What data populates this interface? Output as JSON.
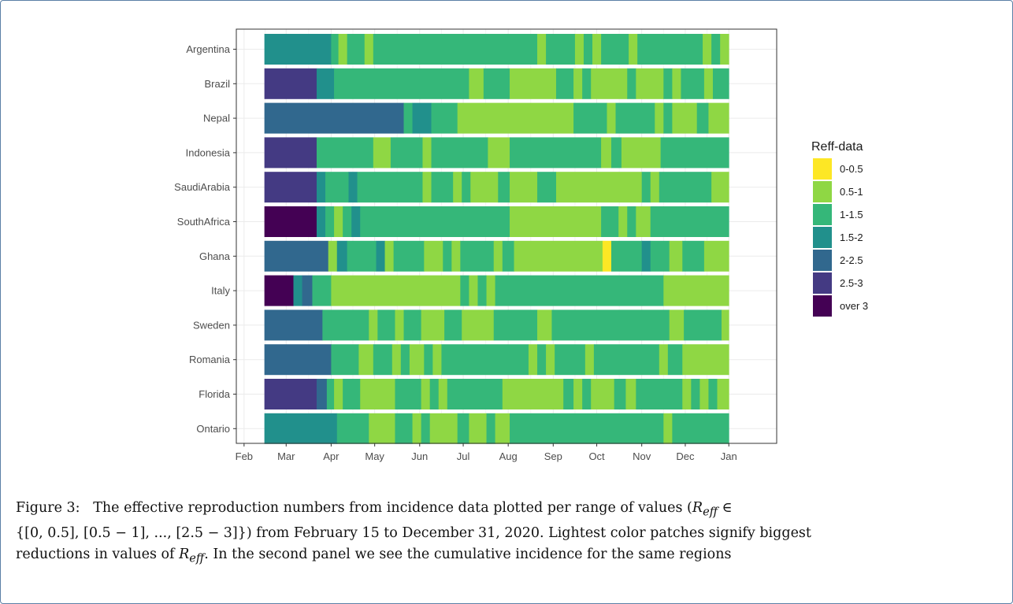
{
  "chart_data": {
    "type": "heatmap",
    "xlabel": "",
    "ylabel": "",
    "x_tick_labels": [
      "Feb",
      "Mar",
      "Apr",
      "May",
      "Jun",
      "Jul",
      "Aug",
      "Sep",
      "Oct",
      "Nov",
      "Dec",
      "Jan"
    ],
    "rows": [
      "Argentina",
      "Brazil",
      "Nepal",
      "Indonesia",
      "SaudiArabia",
      "SouthAfrica",
      "Ghana",
      "Italy",
      "Sweden",
      "Romania",
      "Florida",
      "Ontario"
    ],
    "legend": {
      "title": "Reff-data",
      "placement": "right",
      "categories": [
        {
          "label": "0-0.5",
          "color": "#FDE725"
        },
        {
          "label": "0.5-1",
          "color": "#8FD744"
        },
        {
          "label": "1-1.5",
          "color": "#35B779"
        },
        {
          "label": "1.5-2",
          "color": "#21908C"
        },
        {
          "label": "2-2.5",
          "color": "#31688E"
        },
        {
          "label": "2.5-3",
          "color": "#443A83"
        },
        {
          "label": "over 3",
          "color": "#440154"
        }
      ]
    },
    "date_range": [
      "2020-02-15",
      "2020-12-31"
    ],
    "cells": {
      "Argentina": [
        [
          "02-15",
          "04-01",
          "1.5-2"
        ],
        [
          "04-01",
          "04-06",
          "1-1.5"
        ],
        [
          "04-06",
          "04-12",
          "0.5-1"
        ],
        [
          "04-12",
          "04-24",
          "1-1.5"
        ],
        [
          "04-24",
          "04-30",
          "0.5-1"
        ],
        [
          "04-30",
          "08-21",
          "1-1.5"
        ],
        [
          "08-21",
          "08-27",
          "0.5-1"
        ],
        [
          "08-27",
          "09-16",
          "1-1.5"
        ],
        [
          "09-16",
          "09-22",
          "0.5-1"
        ],
        [
          "09-22",
          "09-28",
          "1-1.5"
        ],
        [
          "09-28",
          "10-04",
          "0.5-1"
        ],
        [
          "10-04",
          "10-23",
          "1-1.5"
        ],
        [
          "10-23",
          "10-29",
          "0.5-1"
        ],
        [
          "10-29",
          "12-13",
          "1-1.5"
        ],
        [
          "12-13",
          "12-19",
          "0.5-1"
        ],
        [
          "12-19",
          "12-25",
          "1-1.5"
        ],
        [
          "12-25",
          "12-31",
          "0.5-1"
        ]
      ],
      "Brazil": [
        [
          "02-15",
          "03-22",
          "2.5-3"
        ],
        [
          "03-22",
          "04-03",
          "1.5-2"
        ],
        [
          "04-03",
          "07-05",
          "1-1.5"
        ],
        [
          "07-05",
          "07-15",
          "0.5-1"
        ],
        [
          "07-15",
          "08-02",
          "1-1.5"
        ],
        [
          "08-02",
          "09-03",
          "0.5-1"
        ],
        [
          "09-03",
          "09-15",
          "1-1.5"
        ],
        [
          "09-15",
          "09-21",
          "0.5-1"
        ],
        [
          "09-21",
          "09-27",
          "1-1.5"
        ],
        [
          "09-27",
          "10-22",
          "0.5-1"
        ],
        [
          "10-22",
          "10-28",
          "1-1.5"
        ],
        [
          "10-28",
          "11-16",
          "0.5-1"
        ],
        [
          "11-16",
          "11-22",
          "1-1.5"
        ],
        [
          "11-22",
          "11-28",
          "0.5-1"
        ],
        [
          "11-28",
          "12-14",
          "1-1.5"
        ],
        [
          "12-14",
          "12-20",
          "0.5-1"
        ],
        [
          "12-20",
          "12-31",
          "1-1.5"
        ]
      ],
      "Nepal": [
        [
          "02-15",
          "05-21",
          "2-2.5"
        ],
        [
          "05-21",
          "05-27",
          "1-1.5"
        ],
        [
          "05-27",
          "06-09",
          "1.5-2"
        ],
        [
          "06-09",
          "06-27",
          "1-1.5"
        ],
        [
          "06-27",
          "09-15",
          "0.5-1"
        ],
        [
          "09-15",
          "10-08",
          "1-1.5"
        ],
        [
          "10-08",
          "10-14",
          "0.5-1"
        ],
        [
          "10-14",
          "11-10",
          "1-1.5"
        ],
        [
          "11-10",
          "11-16",
          "0.5-1"
        ],
        [
          "11-16",
          "11-22",
          "1-1.5"
        ],
        [
          "11-22",
          "12-09",
          "0.5-1"
        ],
        [
          "12-09",
          "12-17",
          "1-1.5"
        ],
        [
          "12-17",
          "12-31",
          "0.5-1"
        ]
      ],
      "Indonesia": [
        [
          "02-15",
          "03-22",
          "2.5-3"
        ],
        [
          "03-22",
          "04-30",
          "1-1.5"
        ],
        [
          "04-30",
          "05-12",
          "0.5-1"
        ],
        [
          "05-12",
          "06-03",
          "1-1.5"
        ],
        [
          "06-03",
          "06-09",
          "0.5-1"
        ],
        [
          "06-09",
          "07-18",
          "1-1.5"
        ],
        [
          "07-18",
          "08-02",
          "0.5-1"
        ],
        [
          "08-02",
          "10-04",
          "1-1.5"
        ],
        [
          "10-04",
          "10-11",
          "0.5-1"
        ],
        [
          "10-11",
          "10-18",
          "1-1.5"
        ],
        [
          "10-18",
          "11-14",
          "0.5-1"
        ],
        [
          "11-14",
          "12-31",
          "1-1.5"
        ]
      ],
      "SaudiArabia": [
        [
          "02-15",
          "03-22",
          "2.5-3"
        ],
        [
          "03-22",
          "03-28",
          "1.5-2"
        ],
        [
          "03-28",
          "04-13",
          "1-1.5"
        ],
        [
          "04-13",
          "04-19",
          "1.5-2"
        ],
        [
          "04-19",
          "06-03",
          "1-1.5"
        ],
        [
          "06-03",
          "06-09",
          "0.5-1"
        ],
        [
          "06-09",
          "06-24",
          "1-1.5"
        ],
        [
          "06-24",
          "06-30",
          "0.5-1"
        ],
        [
          "06-30",
          "07-06",
          "1-1.5"
        ],
        [
          "07-06",
          "07-25",
          "0.5-1"
        ],
        [
          "07-25",
          "08-02",
          "1-1.5"
        ],
        [
          "08-02",
          "08-21",
          "0.5-1"
        ],
        [
          "08-21",
          "09-03",
          "1-1.5"
        ],
        [
          "09-03",
          "11-01",
          "0.5-1"
        ],
        [
          "11-01",
          "11-07",
          "1-1.5"
        ],
        [
          "11-07",
          "11-13",
          "0.5-1"
        ],
        [
          "11-13",
          "12-19",
          "1-1.5"
        ],
        [
          "12-19",
          "12-31",
          "0.5-1"
        ]
      ],
      "SouthAfrica": [
        [
          "02-15",
          "03-22",
          "over 3"
        ],
        [
          "03-22",
          "03-28",
          "1.5-2"
        ],
        [
          "03-28",
          "04-03",
          "1-1.5"
        ],
        [
          "04-03",
          "04-09",
          "0.5-1"
        ],
        [
          "04-09",
          "04-15",
          "1-1.5"
        ],
        [
          "04-15",
          "04-21",
          "1.5-2"
        ],
        [
          "04-21",
          "08-02",
          "1-1.5"
        ],
        [
          "08-02",
          "10-04",
          "0.5-1"
        ],
        [
          "10-04",
          "10-16",
          "1-1.5"
        ],
        [
          "10-16",
          "10-22",
          "0.5-1"
        ],
        [
          "10-22",
          "10-28",
          "1-1.5"
        ],
        [
          "10-28",
          "11-07",
          "0.5-1"
        ],
        [
          "11-07",
          "12-31",
          "1-1.5"
        ]
      ],
      "Ghana": [
        [
          "02-15",
          "03-30",
          "2-2.5"
        ],
        [
          "03-30",
          "04-05",
          "0.5-1"
        ],
        [
          "04-05",
          "04-12",
          "1.5-2"
        ],
        [
          "04-12",
          "05-02",
          "1-1.5"
        ],
        [
          "05-02",
          "05-08",
          "1.5-2"
        ],
        [
          "05-08",
          "05-14",
          "0.5-1"
        ],
        [
          "05-14",
          "06-04",
          "1-1.5"
        ],
        [
          "06-04",
          "06-17",
          "0.5-1"
        ],
        [
          "06-17",
          "06-23",
          "1-1.5"
        ],
        [
          "06-23",
          "06-29",
          "0.5-1"
        ],
        [
          "06-29",
          "07-22",
          "1-1.5"
        ],
        [
          "07-22",
          "07-28",
          "0.5-1"
        ],
        [
          "07-28",
          "08-05",
          "1-1.5"
        ],
        [
          "08-05",
          "10-05",
          "0.5-1"
        ],
        [
          "10-05",
          "10-11",
          "0-0.5"
        ],
        [
          "10-11",
          "11-01",
          "1-1.5"
        ],
        [
          "11-01",
          "11-07",
          "1.5-2"
        ],
        [
          "11-07",
          "11-20",
          "1-1.5"
        ],
        [
          "11-20",
          "11-29",
          "0.5-1"
        ],
        [
          "11-29",
          "12-14",
          "1-1.5"
        ],
        [
          "12-14",
          "12-31",
          "0.5-1"
        ]
      ],
      "Italy": [
        [
          "02-15",
          "03-06",
          "over 3"
        ],
        [
          "03-06",
          "03-12",
          "1.5-2"
        ],
        [
          "03-12",
          "03-19",
          "2-2.5"
        ],
        [
          "03-19",
          "04-01",
          "1-1.5"
        ],
        [
          "04-01",
          "06-29",
          "0.5-1"
        ],
        [
          "06-29",
          "07-05",
          "1-1.5"
        ],
        [
          "07-05",
          "07-11",
          "0.5-1"
        ],
        [
          "07-11",
          "07-17",
          "1-1.5"
        ],
        [
          "07-17",
          "07-23",
          "0.5-1"
        ],
        [
          "07-23",
          "11-16",
          "1-1.5"
        ],
        [
          "11-16",
          "12-31",
          "0.5-1"
        ]
      ],
      "Sweden": [
        [
          "02-15",
          "03-26",
          "2-2.5"
        ],
        [
          "03-26",
          "04-27",
          "1-1.5"
        ],
        [
          "04-27",
          "05-03",
          "0.5-1"
        ],
        [
          "05-03",
          "05-15",
          "1-1.5"
        ],
        [
          "05-15",
          "05-21",
          "0.5-1"
        ],
        [
          "05-21",
          "06-02",
          "1-1.5"
        ],
        [
          "06-02",
          "06-18",
          "0.5-1"
        ],
        [
          "06-18",
          "06-30",
          "1-1.5"
        ],
        [
          "06-30",
          "07-22",
          "0.5-1"
        ],
        [
          "07-22",
          "08-21",
          "1-1.5"
        ],
        [
          "08-21",
          "08-31",
          "0.5-1"
        ],
        [
          "08-31",
          "11-20",
          "1-1.5"
        ],
        [
          "11-20",
          "11-30",
          "0.5-1"
        ],
        [
          "11-30",
          "12-26",
          "1-1.5"
        ],
        [
          "12-26",
          "12-31",
          "0.5-1"
        ]
      ],
      "Romania": [
        [
          "02-15",
          "04-01",
          "2-2.5"
        ],
        [
          "04-01",
          "04-20",
          "1-1.5"
        ],
        [
          "04-20",
          "04-30",
          "0.5-1"
        ],
        [
          "04-30",
          "05-13",
          "1-1.5"
        ],
        [
          "05-13",
          "05-19",
          "0.5-1"
        ],
        [
          "05-19",
          "05-25",
          "1-1.5"
        ],
        [
          "05-25",
          "06-04",
          "0.5-1"
        ],
        [
          "06-04",
          "06-10",
          "1-1.5"
        ],
        [
          "06-10",
          "06-16",
          "0.5-1"
        ],
        [
          "06-16",
          "08-15",
          "1-1.5"
        ],
        [
          "08-15",
          "08-21",
          "0.5-1"
        ],
        [
          "08-21",
          "08-27",
          "1-1.5"
        ],
        [
          "08-27",
          "09-02",
          "0.5-1"
        ],
        [
          "09-02",
          "09-23",
          "1-1.5"
        ],
        [
          "09-23",
          "09-29",
          "0.5-1"
        ],
        [
          "09-29",
          "11-13",
          "1-1.5"
        ],
        [
          "11-13",
          "11-19",
          "0.5-1"
        ],
        [
          "11-19",
          "11-29",
          "1-1.5"
        ],
        [
          "11-29",
          "12-31",
          "0.5-1"
        ]
      ],
      "Florida": [
        [
          "02-15",
          "03-22",
          "2.5-3"
        ],
        [
          "03-22",
          "03-29",
          "2-2.5"
        ],
        [
          "03-29",
          "04-03",
          "1-1.5"
        ],
        [
          "04-03",
          "04-09",
          "0.5-1"
        ],
        [
          "04-09",
          "04-21",
          "1-1.5"
        ],
        [
          "04-21",
          "05-15",
          "0.5-1"
        ],
        [
          "05-15",
          "06-02",
          "1-1.5"
        ],
        [
          "06-02",
          "06-08",
          "0.5-1"
        ],
        [
          "06-08",
          "06-14",
          "1-1.5"
        ],
        [
          "06-14",
          "06-20",
          "0.5-1"
        ],
        [
          "06-20",
          "07-28",
          "1-1.5"
        ],
        [
          "07-28",
          "09-08",
          "0.5-1"
        ],
        [
          "09-08",
          "09-15",
          "1-1.5"
        ],
        [
          "09-15",
          "09-21",
          "0.5-1"
        ],
        [
          "09-21",
          "09-27",
          "1-1.5"
        ],
        [
          "09-27",
          "10-13",
          "0.5-1"
        ],
        [
          "10-13",
          "10-21",
          "1-1.5"
        ],
        [
          "10-21",
          "10-28",
          "0.5-1"
        ],
        [
          "10-28",
          "11-29",
          "1-1.5"
        ],
        [
          "11-29",
          "12-05",
          "0.5-1"
        ],
        [
          "12-05",
          "12-11",
          "1-1.5"
        ],
        [
          "12-11",
          "12-17",
          "0.5-1"
        ],
        [
          "12-17",
          "12-23",
          "1-1.5"
        ],
        [
          "12-23",
          "12-31",
          "0.5-1"
        ]
      ],
      "Ontario": [
        [
          "02-15",
          "04-05",
          "1.5-2"
        ],
        [
          "04-05",
          "04-27",
          "1-1.5"
        ],
        [
          "04-27",
          "05-15",
          "0.5-1"
        ],
        [
          "05-15",
          "05-27",
          "1-1.5"
        ],
        [
          "05-27",
          "06-02",
          "0.5-1"
        ],
        [
          "06-02",
          "06-08",
          "1-1.5"
        ],
        [
          "06-08",
          "06-27",
          "0.5-1"
        ],
        [
          "06-27",
          "07-05",
          "1-1.5"
        ],
        [
          "07-05",
          "07-17",
          "0.5-1"
        ],
        [
          "07-17",
          "07-23",
          "1-1.5"
        ],
        [
          "07-23",
          "08-02",
          "0.5-1"
        ],
        [
          "08-02",
          "11-16",
          "1-1.5"
        ],
        [
          "11-16",
          "11-22",
          "0.5-1"
        ],
        [
          "11-22",
          "12-31",
          "1-1.5"
        ]
      ]
    }
  },
  "caption": {
    "line1_a": "Figure 3:",
    "line1_b": "The effective reproduction numbers from incidence data plotted per range of values (",
    "r_symbol": "R",
    "r_sub": "eff",
    "set_open": " ∈",
    "line2": "{[0, 0.5], [0.5 − 1], ..., [2.5 − 3]}) from February 15 to December 31, 2020. Lightest color patches signify biggest",
    "line3_a": "reductions in values of ",
    "line3_b": ". In the second panel we see the cumulative incidence for the same regions"
  }
}
